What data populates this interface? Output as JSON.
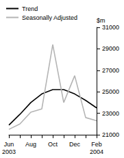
{
  "chart_data": {
    "type": "line",
    "y_label": "$m",
    "categories": [
      "Jun\n2003",
      null,
      "Aug",
      null,
      "Oct",
      null,
      "Dec",
      null,
      "Feb\n2004"
    ],
    "series": [
      {
        "name": "Trend",
        "color": "#000000",
        "values": [
          21900,
          22900,
          24000,
          24800,
          25200,
          25200,
          24800,
          24200,
          23500
        ]
      },
      {
        "name": "Seasonally Adjusted",
        "color": "#b4b4b4",
        "values": [
          21500,
          22000,
          23100,
          23400,
          29400,
          24000,
          26500,
          22600,
          22300
        ]
      }
    ],
    "ylim": [
      21000,
      31000
    ],
    "yticks": [
      21000,
      23000,
      25000,
      27000,
      29000,
      31000
    ],
    "grid": false,
    "legend": "top-left"
  }
}
